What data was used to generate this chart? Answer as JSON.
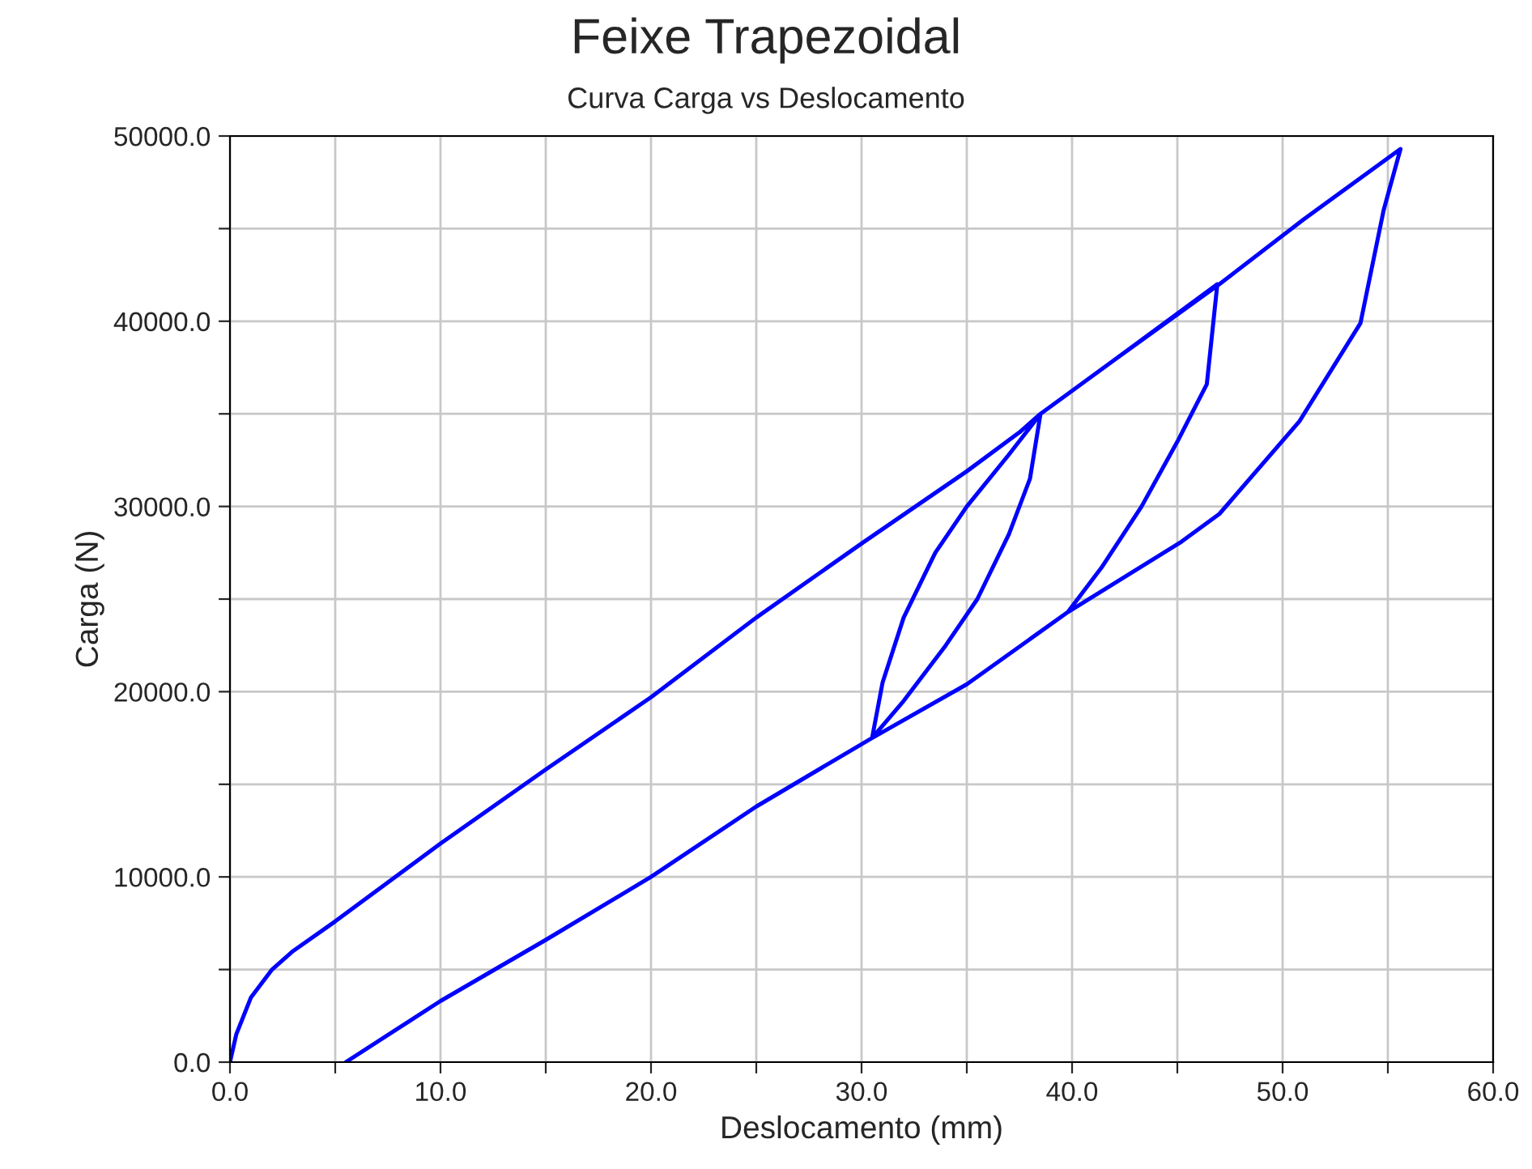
{
  "chart_data": {
    "type": "line",
    "title": "Feixe Trapezoidal",
    "subtitle": "Curva Carga vs Deslocamento",
    "xlabel": "Deslocamento (mm)",
    "ylabel": "Carga (N)",
    "series": [
      {
        "color": "#0000ff",
        "x": [
          0,
          0.3,
          1,
          2,
          3,
          5,
          10,
          15,
          20,
          25,
          30,
          35,
          37.5,
          38.5,
          38,
          37,
          35.5,
          34,
          32,
          30.5,
          31,
          32,
          33.5,
          35,
          37,
          38.5,
          42,
          46.9,
          46.4,
          45,
          43.3,
          41.4,
          39.8,
          35,
          30.5,
          31,
          32,
          33.5,
          35,
          37,
          38.5,
          42,
          47,
          51,
          55.6,
          54.8,
          53.7,
          50.8,
          47,
          45.2,
          39.8,
          35,
          30.5,
          25,
          20,
          15,
          10,
          5.5
        ],
        "values": [
          0,
          1500,
          3500,
          5000,
          6000,
          7600,
          11800,
          15800,
          19700,
          24000,
          28000,
          31900,
          34000,
          35000,
          31500,
          28500,
          25000,
          22500,
          19500,
          17500,
          20500,
          24000,
          27500,
          30000,
          32800,
          35000,
          37900,
          42000,
          36600,
          33500,
          30000,
          26700,
          24300,
          20400,
          17500,
          20500,
          24000,
          27500,
          30000,
          32800,
          35000,
          37900,
          42000,
          45500,
          49300,
          46000,
          39900,
          34600,
          29600,
          28100,
          24300,
          20400,
          17500,
          13800,
          10000,
          6600,
          3300,
          0
        ]
      }
    ],
    "xlim": [
      0,
      60
    ],
    "ylim": [
      0,
      50000
    ],
    "xticks": [
      {
        "value": 0,
        "label": "0.0"
      },
      {
        "value": 5,
        "label": null
      },
      {
        "value": 10,
        "label": "10.0"
      },
      {
        "value": 15,
        "label": null
      },
      {
        "value": 20,
        "label": "20.0"
      },
      {
        "value": 25,
        "label": null
      },
      {
        "value": 30,
        "label": "30.0"
      },
      {
        "value": 35,
        "label": null
      },
      {
        "value": 40,
        "label": "40.0"
      },
      {
        "value": 45,
        "label": null
      },
      {
        "value": 50,
        "label": "50.0"
      },
      {
        "value": 55,
        "label": null
      },
      {
        "value": 60,
        "label": "60.0"
      }
    ],
    "yticks": [
      {
        "value": 0,
        "label": "0.0"
      },
      {
        "value": 5000,
        "label": null
      },
      {
        "value": 10000,
        "label": "10000.0"
      },
      {
        "value": 15000,
        "label": null
      },
      {
        "value": 20000,
        "label": "20000.0"
      },
      {
        "value": 25000,
        "label": null
      },
      {
        "value": 30000,
        "label": "30000.0"
      },
      {
        "value": 35000,
        "label": null
      },
      {
        "value": 40000,
        "label": "40000.0"
      },
      {
        "value": 45000,
        "label": null
      },
      {
        "value": 50000,
        "label": "50000.0"
      }
    ],
    "grid": true
  }
}
